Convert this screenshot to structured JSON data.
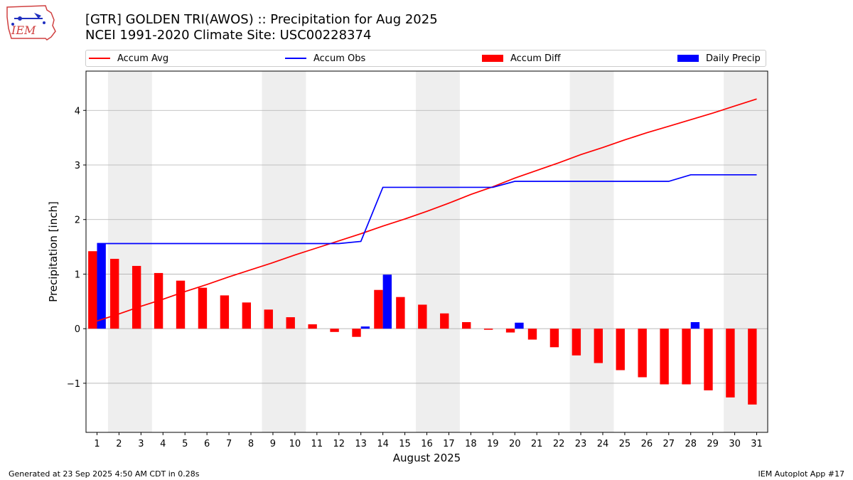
{
  "header": {
    "title_line1": "[GTR] GOLDEN TRI(AWOS) :: Precipitation for Aug 2025",
    "title_line2": "NCEI 1991-2020 Climate Site: USC00228374",
    "logo_text": "IEM"
  },
  "footer": {
    "left": "Generated at 23 Sep 2025 4:50 AM CDT in 0.28s",
    "right": "IEM Autoplot App #17"
  },
  "colors": {
    "accum_avg": "#ff0000",
    "accum_obs": "#0000ff",
    "accum_diff": "#ff0000",
    "daily_precip": "#0000ff",
    "weekend_shade": "#eeeeee",
    "grid": "#b0b0b0"
  },
  "chart_data": {
    "type": "bar",
    "xlabel": "August 2025",
    "ylabel": "Precipitation [inch]",
    "xlim": [
      0.5,
      31.5
    ],
    "ylim": [
      -1.9,
      4.72
    ],
    "yticks": [
      -1,
      0,
      1,
      2,
      3,
      4
    ],
    "ytick_labels": [
      "−1",
      "0",
      "1",
      "2",
      "3",
      "4"
    ],
    "x": [
      1,
      2,
      3,
      4,
      5,
      6,
      7,
      8,
      9,
      10,
      11,
      12,
      13,
      14,
      15,
      16,
      17,
      18,
      19,
      20,
      21,
      22,
      23,
      24,
      25,
      26,
      27,
      28,
      29,
      30,
      31
    ],
    "legend": {
      "placement": "top, above plot (expanded)"
    },
    "grid": "horizontal",
    "weekend_shading": [
      [
        1.5,
        3.5
      ],
      [
        8.5,
        10.5
      ],
      [
        15.5,
        17.5
      ],
      [
        22.5,
        24.5
      ],
      [
        29.5,
        31.5
      ]
    ],
    "series": [
      {
        "name": "Accum Avg",
        "type": "line",
        "values": [
          0.14,
          0.27,
          0.41,
          0.54,
          0.68,
          0.81,
          0.95,
          1.08,
          1.21,
          1.35,
          1.48,
          1.61,
          1.74,
          1.88,
          2.01,
          2.15,
          2.3,
          2.46,
          2.6,
          2.76,
          2.9,
          3.04,
          3.19,
          3.32,
          3.46,
          3.59,
          3.71,
          3.83,
          3.95,
          4.08,
          4.21
        ]
      },
      {
        "name": "Accum Obs",
        "type": "line",
        "values": [
          1.56,
          1.56,
          1.56,
          1.56,
          1.56,
          1.56,
          1.56,
          1.56,
          1.56,
          1.56,
          1.56,
          1.56,
          1.6,
          2.59,
          2.59,
          2.59,
          2.59,
          2.59,
          2.59,
          2.7,
          2.7,
          2.7,
          2.7,
          2.7,
          2.7,
          2.7,
          2.7,
          2.82,
          2.82,
          2.82,
          2.82
        ]
      },
      {
        "name": "Accum Diff",
        "type": "bar",
        "values": [
          1.42,
          1.28,
          1.15,
          1.02,
          0.88,
          0.75,
          0.61,
          0.48,
          0.35,
          0.21,
          0.08,
          -0.06,
          -0.15,
          0.71,
          0.58,
          0.44,
          0.28,
          0.12,
          -0.02,
          -0.07,
          -0.2,
          -0.34,
          -0.49,
          -0.63,
          -0.76,
          -0.89,
          -1.02,
          -1.02,
          -1.13,
          -1.26,
          -1.39
        ]
      },
      {
        "name": "Daily Precip",
        "type": "bar",
        "values": [
          1.56,
          0,
          0,
          0,
          0,
          0,
          0,
          0,
          0,
          0,
          0,
          0,
          0.04,
          0.99,
          0,
          0,
          0,
          0,
          0,
          0.11,
          0,
          0,
          0,
          0,
          0,
          0,
          0,
          0.12,
          0,
          0,
          0
        ]
      }
    ]
  }
}
